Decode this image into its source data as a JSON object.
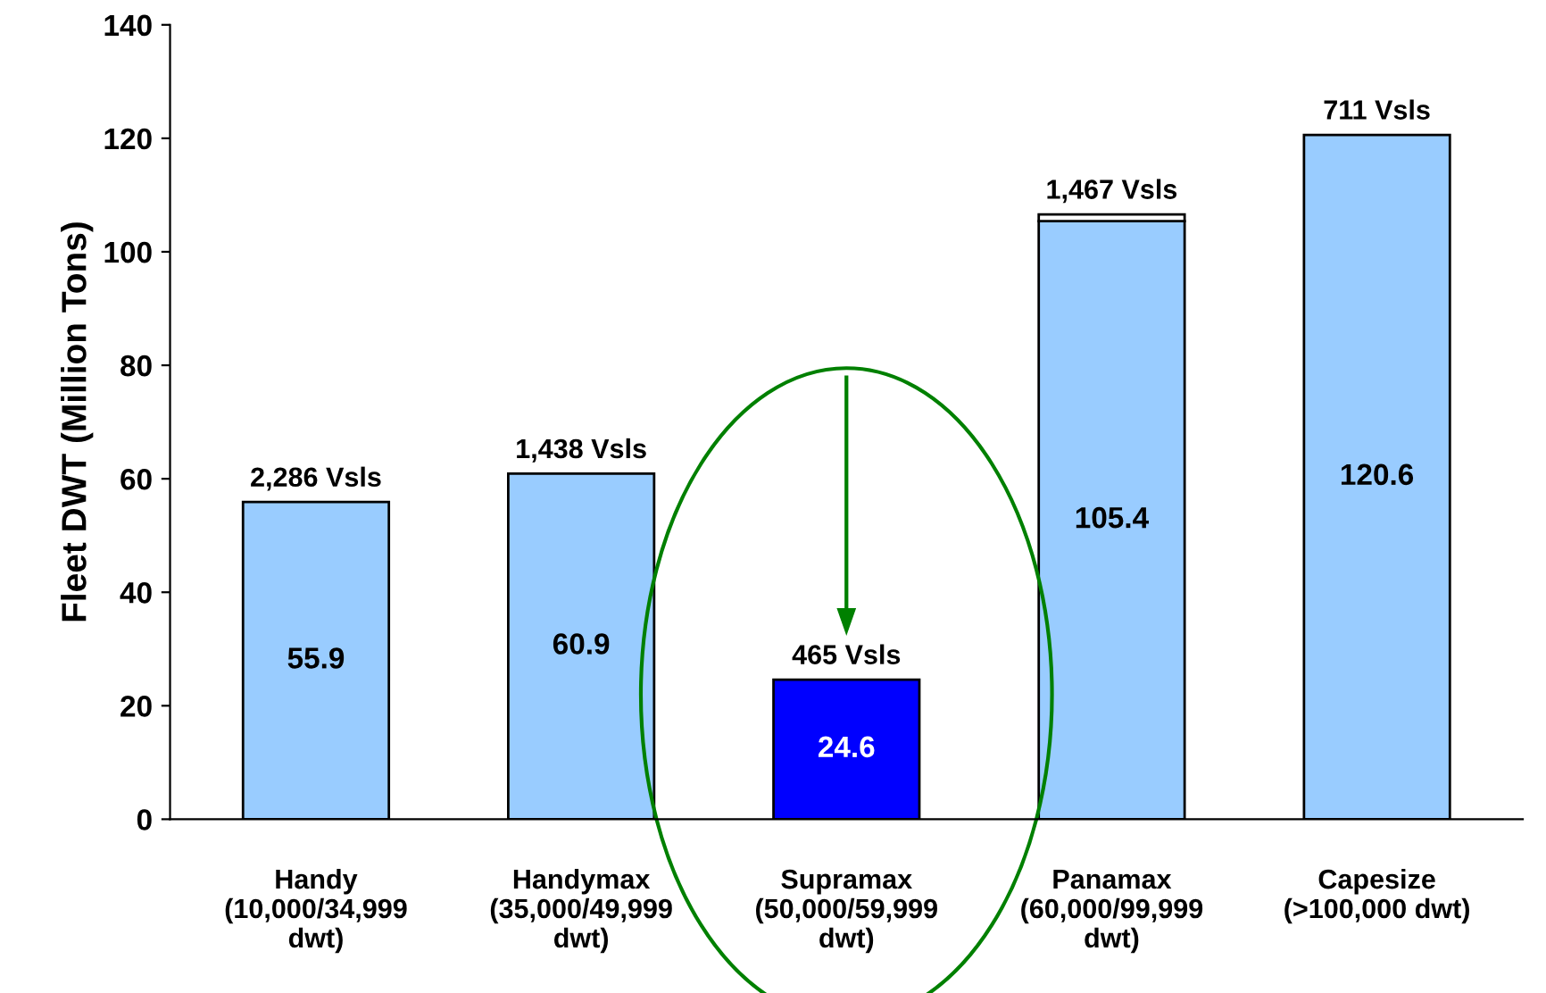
{
  "chart_data": {
    "type": "bar",
    "ylabel": "Fleet DWT (Million Tons)",
    "categories": [
      "Handy\n(10,000/34,999\ndwt)",
      "Handymax\n(35,000/49,999\ndwt)",
      "Supramax\n(50,000/59,999\ndwt)",
      "Panamax\n(60,000/99,999\ndwt)",
      "Capesize\n(>100,000 dwt)"
    ],
    "stacked": true,
    "series": [
      {
        "colors": [
          "#99ccff",
          "#99ccff",
          "#0000ff",
          "#99ccff",
          "#99ccff"
        ],
        "values": [
          55.9,
          60.9,
          24.6,
          105.4,
          120.6
        ],
        "value_labels": [
          "55.9",
          "60.9",
          "24.6",
          "105.4",
          "120.6"
        ]
      },
      {
        "color": "#ffffff",
        "values": [
          null,
          null,
          null,
          1.2,
          null
        ]
      }
    ],
    "annotations": [
      {
        "text": "2,286 Vsls",
        "x": "Handy\n(10,000/34,999\ndwt)",
        "y": 55.9
      },
      {
        "text": "1,438 Vsls",
        "x": "Handymax\n(35,000/49,999\ndwt)",
        "y": 60.9
      },
      {
        "text": "465 Vsls",
        "x": "Supramax\n(50,000/59,999\ndwt)",
        "y": 24.6
      },
      {
        "text": "1,467 Vsls",
        "x": "Panamax\n(60,000/99,999\ndwt)",
        "y": 106.6
      },
      {
        "text": "711 Vsls",
        "x": "Capesize\n(>100,000 dwt)",
        "y": 120.6
      }
    ],
    "ylim": [
      0,
      140
    ],
    "yticks": [
      0,
      20,
      40,
      60,
      80,
      100,
      120,
      140
    ],
    "grid": false,
    "legend": false
  }
}
